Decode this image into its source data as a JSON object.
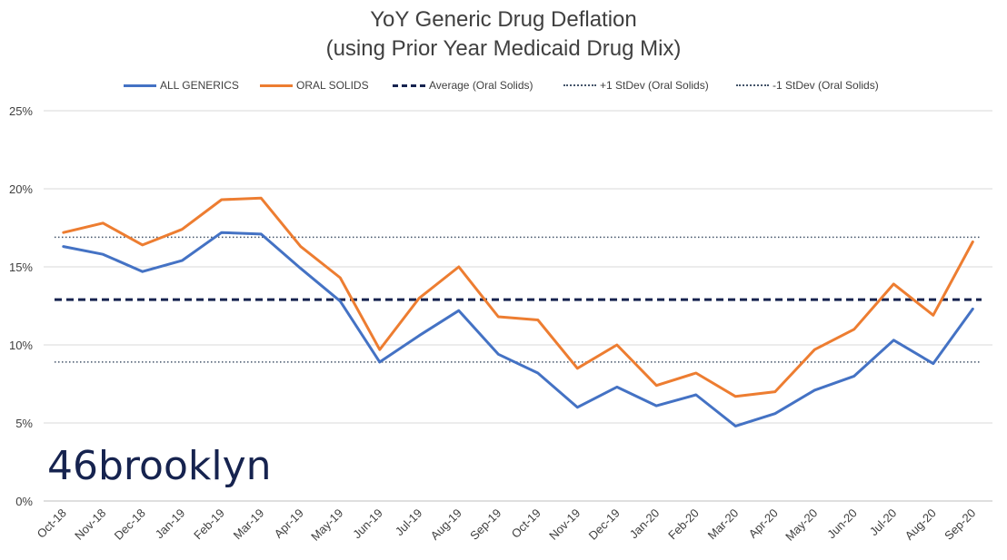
{
  "chart_data": {
    "type": "line",
    "title": "YoY Generic Drug Deflation",
    "subtitle": "(using Prior Year Medicaid Drug Mix)",
    "xlabel": "",
    "ylabel": "",
    "ylim": [
      0,
      25
    ],
    "y_ticks": [
      0,
      5,
      10,
      15,
      20,
      25
    ],
    "y_tick_labels": [
      "0%",
      "5%",
      "10%",
      "15%",
      "20%",
      "25%"
    ],
    "grid": true,
    "legend_position": "top-center",
    "categories": [
      "Oct-18",
      "Nov-18",
      "Dec-18",
      "Jan-19",
      "Feb-19",
      "Mar-19",
      "Apr-19",
      "May-19",
      "Jun-19",
      "Jul-19",
      "Aug-19",
      "Sep-19",
      "Oct-19",
      "Nov-19",
      "Dec-19",
      "Jan-20",
      "Feb-20",
      "Mar-20",
      "Apr-20",
      "May-20",
      "Jun-20",
      "Jul-20",
      "Aug-20",
      "Sep-20"
    ],
    "series": [
      {
        "name": "ALL GENERICS",
        "color": "#4472c4",
        "style": "solid",
        "values": [
          16.3,
          15.8,
          14.7,
          15.4,
          17.2,
          17.1,
          14.9,
          12.8,
          8.9,
          10.6,
          12.2,
          9.4,
          8.2,
          6.0,
          7.3,
          6.1,
          6.8,
          4.8,
          5.6,
          7.1,
          8.0,
          10.3,
          8.8,
          12.3
        ]
      },
      {
        "name": "ORAL SOLIDS",
        "color": "#ed7d31",
        "style": "solid",
        "values": [
          17.2,
          17.8,
          16.4,
          17.4,
          19.3,
          19.4,
          16.3,
          14.3,
          9.7,
          13.0,
          15.0,
          11.8,
          11.6,
          8.5,
          10.0,
          7.4,
          8.2,
          6.7,
          7.0,
          9.7,
          11.0,
          13.9,
          11.9,
          16.6
        ]
      },
      {
        "name": "Average (Oral Solids)",
        "color": "#16234f",
        "style": "dashed",
        "constant": 12.9
      },
      {
        "name": "+1 StDev (Oral Solids)",
        "color": "#44546a",
        "style": "dotted",
        "constant": 16.9
      },
      {
        "name": "-1 StDev (Oral Solids)",
        "color": "#44546a",
        "style": "dotted",
        "constant": 8.9
      }
    ]
  },
  "branding": {
    "logo_text": "46brooklyn"
  },
  "colors": {
    "gridline": "#d9d9d9",
    "text": "#404040"
  }
}
